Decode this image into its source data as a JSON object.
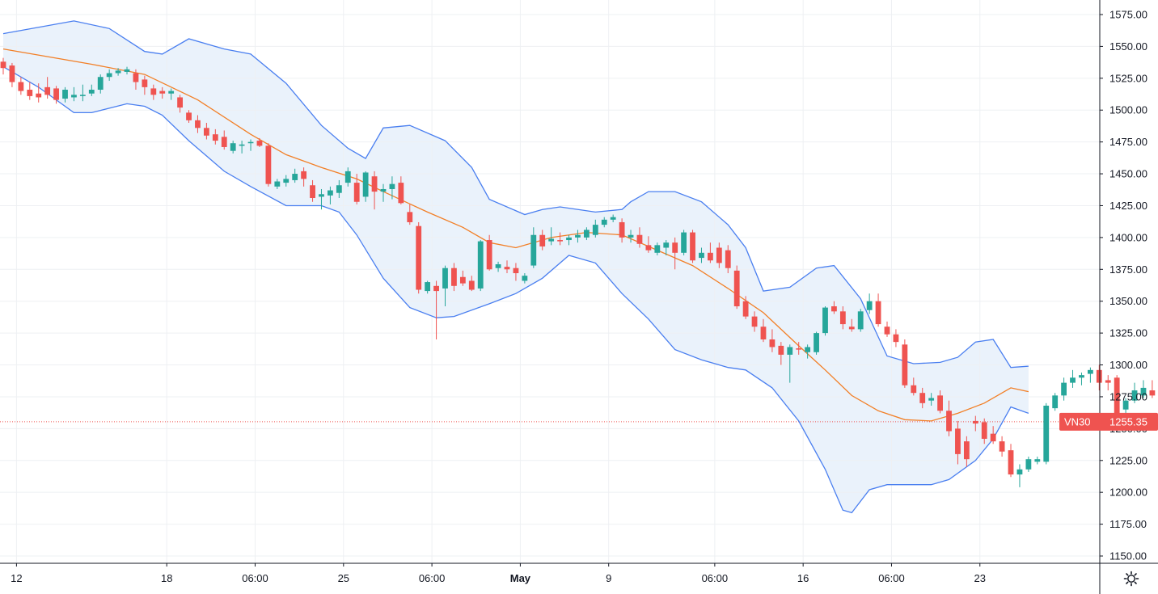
{
  "chart_data": {
    "type": "candlestick",
    "symbol": "VN30",
    "last_price_label": "1255.35",
    "last_price": 1255.35,
    "ylim": [
      1140,
      1585
    ],
    "y_ticks": [
      "1150.00",
      "1175.00",
      "1200.00",
      "1225.00",
      "1250.00",
      "1275.00",
      "1300.00",
      "1325.00",
      "1350.00",
      "1375.00",
      "1400.00",
      "1425.00",
      "1450.00",
      "1475.00",
      "1500.00",
      "1525.00",
      "1550.00",
      "1575.00"
    ],
    "x_ticks": [
      {
        "label": "12",
        "bar": 1.5,
        "bold": false
      },
      {
        "label": "18",
        "bar": 18.5,
        "bold": false
      },
      {
        "label": "06:00",
        "bar": 28.5,
        "bold": false
      },
      {
        "label": "25",
        "bar": 38.5,
        "bold": false
      },
      {
        "label": "06:00",
        "bar": 48.5,
        "bold": false
      },
      {
        "label": "May",
        "bar": 58.5,
        "bold": true
      },
      {
        "label": "9",
        "bar": 68.5,
        "bold": false
      },
      {
        "label": "06:00",
        "bar": 80.5,
        "bold": false
      },
      {
        "label": "16",
        "bar": 90.5,
        "bold": false
      },
      {
        "label": "06:00",
        "bar": 100.5,
        "bold": false
      },
      {
        "label": "23",
        "bar": 110.5,
        "bold": false
      }
    ],
    "bars": [
      [
        1538,
        1541,
        1528,
        1533
      ],
      [
        1535,
        1537,
        1518,
        1522
      ],
      [
        1522,
        1526,
        1512,
        1515
      ],
      [
        1516,
        1522,
        1508,
        1511
      ],
      [
        1513,
        1521,
        1506,
        1510
      ],
      [
        1518,
        1526,
        1509,
        1512
      ],
      [
        1517,
        1519,
        1505,
        1508
      ],
      [
        1509,
        1518,
        1506,
        1516
      ],
      [
        1510,
        1518,
        1507,
        1512
      ],
      [
        1511,
        1520,
        1507,
        1512
      ],
      [
        1513,
        1520,
        1511,
        1516
      ],
      [
        1516,
        1528,
        1513,
        1526
      ],
      [
        1526,
        1532,
        1523,
        1529
      ],
      [
        1529,
        1533,
        1527,
        1531
      ],
      [
        1530,
        1534,
        1528,
        1532
      ],
      [
        1529,
        1532,
        1516,
        1522
      ],
      [
        1524,
        1527,
        1512,
        1518
      ],
      [
        1517,
        1520,
        1508,
        1512
      ],
      [
        1515,
        1518,
        1509,
        1513
      ],
      [
        1513,
        1517,
        1508,
        1515
      ],
      [
        1510,
        1512,
        1498,
        1502
      ],
      [
        1498,
        1500,
        1490,
        1492
      ],
      [
        1492,
        1496,
        1482,
        1486
      ],
      [
        1486,
        1490,
        1477,
        1480
      ],
      [
        1481,
        1485,
        1473,
        1476
      ],
      [
        1479,
        1484,
        1469,
        1471
      ],
      [
        1468,
        1476,
        1466,
        1474
      ],
      [
        1472,
        1476,
        1466,
        1473
      ],
      [
        1474,
        1477,
        1468,
        1475
      ],
      [
        1476,
        1478,
        1471,
        1472
      ],
      [
        1472,
        1474,
        1440,
        1442
      ],
      [
        1440,
        1446,
        1438,
        1444
      ],
      [
        1443,
        1449,
        1440,
        1446
      ],
      [
        1445,
        1454,
        1443,
        1450
      ],
      [
        1452,
        1455,
        1440,
        1446
      ],
      [
        1441,
        1445,
        1428,
        1431
      ],
      [
        1432,
        1438,
        1422,
        1434
      ],
      [
        1433,
        1440,
        1426,
        1437
      ],
      [
        1435,
        1445,
        1431,
        1441
      ],
      [
        1443,
        1455,
        1440,
        1452
      ],
      [
        1443,
        1450,
        1426,
        1428
      ],
      [
        1432,
        1452,
        1428,
        1451
      ],
      [
        1448,
        1452,
        1422,
        1436
      ],
      [
        1436,
        1442,
        1428,
        1438
      ],
      [
        1438,
        1448,
        1430,
        1442
      ],
      [
        1443,
        1448,
        1426,
        1427
      ],
      [
        1420,
        1426,
        1410,
        1412
      ],
      [
        1409,
        1412,
        1356,
        1359
      ],
      [
        1358,
        1366,
        1356,
        1365
      ],
      [
        1362,
        1366,
        1320,
        1358
      ],
      [
        1360,
        1378,
        1346,
        1376
      ],
      [
        1376,
        1380,
        1358,
        1362
      ],
      [
        1369,
        1374,
        1362,
        1364
      ],
      [
        1366,
        1370,
        1358,
        1359
      ],
      [
        1360,
        1398,
        1358,
        1397
      ],
      [
        1398,
        1402,
        1374,
        1375
      ],
      [
        1376,
        1381,
        1373,
        1379
      ],
      [
        1377,
        1382,
        1372,
        1375
      ],
      [
        1376,
        1380,
        1366,
        1372
      ],
      [
        1366,
        1372,
        1364,
        1370
      ],
      [
        1378,
        1408,
        1376,
        1402
      ],
      [
        1402,
        1406,
        1390,
        1393
      ],
      [
        1397,
        1408,
        1394,
        1399
      ],
      [
        1398,
        1404,
        1394,
        1397
      ],
      [
        1398,
        1402,
        1394,
        1400
      ],
      [
        1400,
        1406,
        1396,
        1402
      ],
      [
        1400,
        1408,
        1398,
        1406
      ],
      [
        1402,
        1414,
        1400,
        1410
      ],
      [
        1410,
        1416,
        1408,
        1414
      ],
      [
        1414,
        1418,
        1412,
        1416
      ],
      [
        1412,
        1415,
        1396,
        1400
      ],
      [
        1400,
        1406,
        1396,
        1402
      ],
      [
        1402,
        1408,
        1392,
        1395
      ],
      [
        1394,
        1401,
        1388,
        1390
      ],
      [
        1388,
        1396,
        1386,
        1394
      ],
      [
        1392,
        1398,
        1386,
        1396
      ],
      [
        1396,
        1400,
        1375,
        1388
      ],
      [
        1388,
        1406,
        1386,
        1404
      ],
      [
        1404,
        1406,
        1380,
        1382
      ],
      [
        1384,
        1392,
        1380,
        1388
      ],
      [
        1388,
        1396,
        1380,
        1382
      ],
      [
        1392,
        1396,
        1376,
        1380
      ],
      [
        1390,
        1394,
        1372,
        1376
      ],
      [
        1374,
        1378,
        1344,
        1346
      ],
      [
        1350,
        1354,
        1336,
        1338
      ],
      [
        1338,
        1342,
        1326,
        1330
      ],
      [
        1330,
        1336,
        1318,
        1320
      ],
      [
        1320,
        1328,
        1310,
        1314
      ],
      [
        1315,
        1318,
        1300,
        1308
      ],
      [
        1308,
        1316,
        1286,
        1314
      ],
      [
        1313,
        1318,
        1308,
        1312
      ],
      [
        1310,
        1316,
        1305,
        1314
      ],
      [
        1310,
        1326,
        1308,
        1325
      ],
      [
        1325,
        1346,
        1323,
        1345
      ],
      [
        1346,
        1350,
        1340,
        1342
      ],
      [
        1342,
        1346,
        1328,
        1332
      ],
      [
        1330,
        1336,
        1326,
        1328
      ],
      [
        1328,
        1344,
        1326,
        1342
      ],
      [
        1343,
        1356,
        1340,
        1350
      ],
      [
        1350,
        1356,
        1330,
        1332
      ],
      [
        1330,
        1334,
        1322,
        1324
      ],
      [
        1324,
        1328,
        1314,
        1318
      ],
      [
        1316,
        1320,
        1282,
        1284
      ],
      [
        1284,
        1290,
        1276,
        1278
      ],
      [
        1278,
        1282,
        1266,
        1270
      ],
      [
        1272,
        1278,
        1268,
        1274
      ],
      [
        1276,
        1280,
        1262,
        1264
      ],
      [
        1264,
        1272,
        1244,
        1248
      ],
      [
        1250,
        1256,
        1222,
        1230
      ],
      [
        1240,
        1244,
        1220,
        1226
      ],
      [
        1256,
        1260,
        1248,
        1254
      ],
      [
        1255,
        1258,
        1238,
        1242
      ],
      [
        1246,
        1252,
        1238,
        1240
      ],
      [
        1240,
        1244,
        1228,
        1232
      ],
      [
        1233,
        1238,
        1212,
        1214
      ],
      [
        1214,
        1222,
        1204,
        1218
      ],
      [
        1218,
        1228,
        1216,
        1226
      ],
      [
        1224,
        1228,
        1222,
        1226
      ],
      [
        1224,
        1270,
        1222,
        1268
      ],
      [
        1266,
        1278,
        1264,
        1276
      ],
      [
        1276,
        1290,
        1272,
        1286
      ],
      [
        1286,
        1296,
        1282,
        1290
      ],
      [
        1290,
        1294,
        1284,
        1292
      ],
      [
        1293,
        1298,
        1286,
        1296
      ],
      [
        1296,
        1300,
        1280,
        1286
      ],
      [
        1288,
        1292,
        1280,
        1286
      ],
      [
        1290,
        1292,
        1256,
        1262
      ],
      [
        1265,
        1274,
        1262,
        1272
      ],
      [
        1272,
        1286,
        1270,
        1280
      ],
      [
        1276,
        1288,
        1274,
        1282
      ],
      [
        1280,
        1288,
        1274,
        1276
      ],
      [
        1278,
        1290,
        1276,
        1286
      ],
      [
        1282,
        1292,
        1278,
        1290
      ],
      [
        1290,
        1296,
        1284,
        1294
      ],
      [
        1294,
        1296,
        1284,
        1288
      ],
      [
        1290,
        1294,
        1274,
        1278
      ],
      [
        1282,
        1288,
        1272,
        1276
      ],
      [
        1282,
        1288,
        1264,
        1272
      ],
      [
        1270,
        1278,
        1264,
        1268
      ],
      [
        1268,
        1272,
        1258,
        1262
      ],
      [
        1264,
        1268,
        1246,
        1256
      ]
    ],
    "bands": {
      "upper": [
        [
          0,
          1560
        ],
        [
          8,
          1570
        ],
        [
          12,
          1564
        ],
        [
          16,
          1546
        ],
        [
          18,
          1544
        ],
        [
          21,
          1556
        ],
        [
          25,
          1548
        ],
        [
          28,
          1544
        ],
        [
          32,
          1521
        ],
        [
          36,
          1488
        ],
        [
          39,
          1470
        ],
        [
          41,
          1462
        ],
        [
          43,
          1486
        ],
        [
          46,
          1488
        ],
        [
          50,
          1476
        ],
        [
          53,
          1455
        ],
        [
          55,
          1430
        ],
        [
          59,
          1418
        ],
        [
          61,
          1422
        ],
        [
          63,
          1424
        ],
        [
          67,
          1420
        ],
        [
          70,
          1422
        ],
        [
          71,
          1428
        ],
        [
          73,
          1436
        ],
        [
          76,
          1436
        ],
        [
          79,
          1428
        ],
        [
          82,
          1410
        ],
        [
          84,
          1392
        ],
        [
          86,
          1358
        ],
        [
          89,
          1361
        ],
        [
          92,
          1376
        ],
        [
          94,
          1378
        ],
        [
          97,
          1352
        ],
        [
          100,
          1307
        ],
        [
          103,
          1301
        ],
        [
          106,
          1302
        ],
        [
          108,
          1306
        ],
        [
          110,
          1318
        ],
        [
          112,
          1320
        ],
        [
          114,
          1298
        ],
        [
          116,
          1299
        ]
      ],
      "middle": [
        [
          0,
          1548
        ],
        [
          10,
          1536
        ],
        [
          16,
          1528
        ],
        [
          22,
          1508
        ],
        [
          28,
          1481
        ],
        [
          32,
          1465
        ],
        [
          36,
          1455
        ],
        [
          40,
          1446
        ],
        [
          43,
          1436
        ],
        [
          48,
          1420
        ],
        [
          52,
          1408
        ],
        [
          55,
          1396
        ],
        [
          58,
          1392
        ],
        [
          62,
          1400
        ],
        [
          66,
          1404
        ],
        [
          70,
          1402
        ],
        [
          74,
          1390
        ],
        [
          78,
          1378
        ],
        [
          82,
          1360
        ],
        [
          86,
          1341
        ],
        [
          90,
          1315
        ],
        [
          93,
          1296
        ],
        [
          96,
          1276
        ],
        [
          99,
          1264
        ],
        [
          102,
          1257
        ],
        [
          105,
          1256
        ],
        [
          108,
          1262
        ],
        [
          111,
          1270
        ],
        [
          114,
          1282
        ],
        [
          116,
          1279
        ]
      ],
      "lower": [
        [
          0,
          1534
        ],
        [
          4,
          1518
        ],
        [
          8,
          1498
        ],
        [
          10,
          1498
        ],
        [
          14,
          1505
        ],
        [
          16,
          1503
        ],
        [
          18,
          1496
        ],
        [
          21,
          1476
        ],
        [
          25,
          1452
        ],
        [
          28,
          1440
        ],
        [
          32,
          1425
        ],
        [
          36,
          1425
        ],
        [
          38,
          1420
        ],
        [
          40,
          1402
        ],
        [
          43,
          1368
        ],
        [
          46,
          1345
        ],
        [
          49,
          1337
        ],
        [
          51,
          1338
        ],
        [
          55,
          1348
        ],
        [
          58,
          1356
        ],
        [
          61,
          1368
        ],
        [
          64,
          1386
        ],
        [
          67,
          1380
        ],
        [
          70,
          1356
        ],
        [
          73,
          1336
        ],
        [
          76,
          1312
        ],
        [
          79,
          1304
        ],
        [
          82,
          1298
        ],
        [
          84,
          1296
        ],
        [
          87,
          1282
        ],
        [
          90,
          1256
        ],
        [
          93,
          1218
        ],
        [
          95,
          1186
        ],
        [
          96,
          1184
        ],
        [
          98,
          1202
        ],
        [
          100,
          1206
        ],
        [
          105,
          1206
        ],
        [
          107,
          1210
        ],
        [
          110,
          1225
        ],
        [
          112,
          1242
        ],
        [
          114,
          1267
        ],
        [
          116,
          1262
        ]
      ]
    }
  },
  "colors": {
    "up": "#26a69a",
    "down": "#ef5350",
    "band_line": "#4a7ff0",
    "middle_line": "#f27f26",
    "band_fill": "#eaf2fb",
    "grid": "#eef0f3",
    "axis_line": "#131722",
    "tag_bg": "#ef5350",
    "price_line": "#ef5350"
  },
  "icons": {
    "settings": "gear-icon"
  }
}
